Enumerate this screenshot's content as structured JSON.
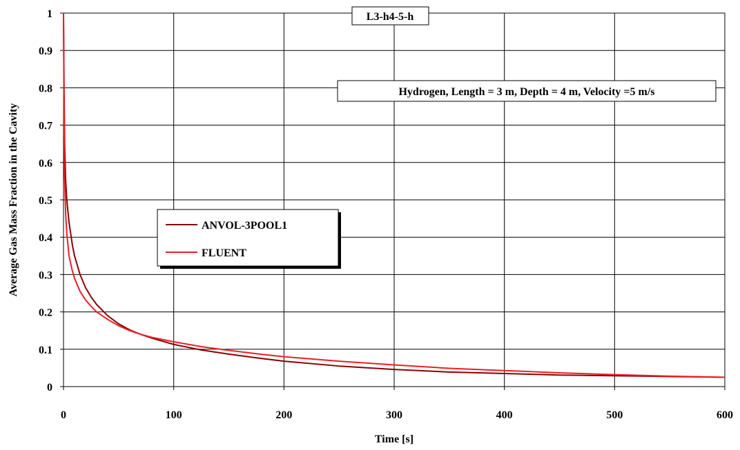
{
  "chart_data": {
    "type": "line",
    "tag": "L3-h4-5-h",
    "annotation": "Hydrogen, Length = 3 m, Depth = 4 m, Velocity =5 m/s",
    "xlabel": "Time [s]",
    "ylabel": "Average Gas Mass Fraction in the Cavity",
    "xlim": [
      0,
      600
    ],
    "ylim": [
      0,
      1
    ],
    "xticks": [
      "0",
      "100",
      "200",
      "300",
      "400",
      "500",
      "600"
    ],
    "yticks": [
      "0",
      "0.1",
      "0.2",
      "0.3",
      "0.4",
      "0.5",
      "0.6",
      "0.7",
      "0.8",
      "0.9",
      "1"
    ],
    "grid": true,
    "legend_position": "middle-left",
    "series": [
      {
        "name": "ANVOL-3POOL1",
        "color": "#8b0000",
        "x": [
          0,
          0.5,
          1,
          2,
          3,
          5,
          8,
          10,
          15,
          20,
          25,
          30,
          40,
          50,
          60,
          70,
          80,
          100,
          125,
          150,
          175,
          200,
          250,
          300,
          350,
          400,
          450,
          500,
          550,
          600
        ],
        "y": [
          1.0,
          0.8,
          0.65,
          0.55,
          0.5,
          0.44,
          0.38,
          0.35,
          0.3,
          0.265,
          0.24,
          0.22,
          0.19,
          0.168,
          0.152,
          0.14,
          0.13,
          0.113,
          0.098,
          0.087,
          0.077,
          0.068,
          0.055,
          0.046,
          0.039,
          0.035,
          0.031,
          0.029,
          0.027,
          0.025
        ]
      },
      {
        "name": "FLUENT",
        "color": "#ee1c24",
        "x": [
          0,
          0.5,
          1,
          2,
          3,
          5,
          8,
          10,
          15,
          20,
          25,
          30,
          40,
          50,
          60,
          70,
          80,
          100,
          125,
          150,
          175,
          200,
          250,
          300,
          350,
          400,
          450,
          500,
          550,
          600
        ],
        "y": [
          1.0,
          0.72,
          0.56,
          0.46,
          0.41,
          0.35,
          0.31,
          0.29,
          0.255,
          0.232,
          0.215,
          0.2,
          0.18,
          0.163,
          0.15,
          0.14,
          0.132,
          0.12,
          0.107,
          0.097,
          0.088,
          0.08,
          0.068,
          0.058,
          0.049,
          0.043,
          0.037,
          0.032,
          0.028,
          0.025
        ]
      }
    ]
  }
}
